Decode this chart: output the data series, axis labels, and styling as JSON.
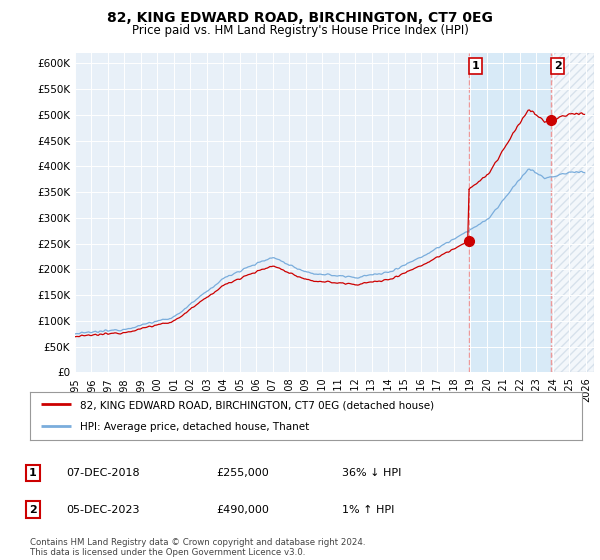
{
  "title": "82, KING EDWARD ROAD, BIRCHINGTON, CT7 0EG",
  "subtitle": "Price paid vs. HM Land Registry's House Price Index (HPI)",
  "title_fontsize": 10,
  "subtitle_fontsize": 8.5,
  "ylabel_ticks": [
    "£0",
    "£50K",
    "£100K",
    "£150K",
    "£200K",
    "£250K",
    "£300K",
    "£350K",
    "£400K",
    "£450K",
    "£500K",
    "£550K",
    "£600K"
  ],
  "ytick_vals": [
    0,
    50000,
    100000,
    150000,
    200000,
    250000,
    300000,
    350000,
    400000,
    450000,
    500000,
    550000,
    600000
  ],
  "ylim": [
    0,
    620000
  ],
  "xlim_start": 1995.0,
  "xlim_end": 2026.5,
  "sale1_date": 2018.917,
  "sale1_price": 255000,
  "sale1_label": "1",
  "sale2_date": 2023.917,
  "sale2_price": 490000,
  "sale2_label": "2",
  "red_color": "#cc0000",
  "blue_color": "#7aaddc",
  "shade_color": "#d8eaf7",
  "vline_color": "#ee9999",
  "legend_line1": "82, KING EDWARD ROAD, BIRCHINGTON, CT7 0EG (detached house)",
  "legend_line2": "HPI: Average price, detached house, Thanet",
  "table_row1": [
    "1",
    "07-DEC-2018",
    "£255,000",
    "36% ↓ HPI"
  ],
  "table_row2": [
    "2",
    "05-DEC-2023",
    "£490,000",
    "1% ↑ HPI"
  ],
  "footer": "Contains HM Land Registry data © Crown copyright and database right 2024.\nThis data is licensed under the Open Government Licence v3.0.",
  "bg_color": "#ffffff",
  "plot_bg_color": "#e8f0f8"
}
